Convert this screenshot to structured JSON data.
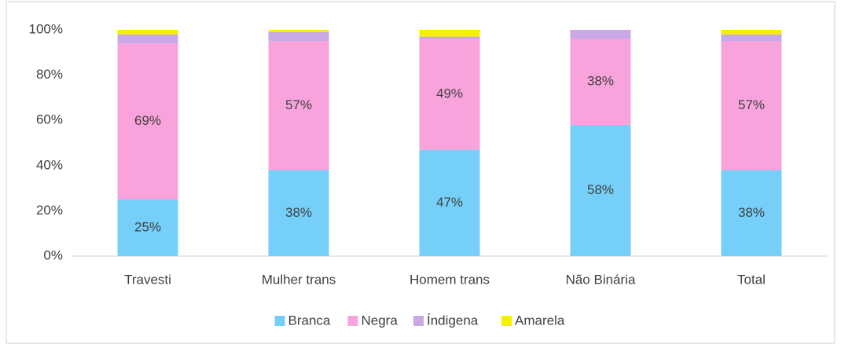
{
  "chart_data": {
    "type": "stacked_bar",
    "categories": [
      "Travesti",
      "Mulher trans",
      "Homem trans",
      "Não Binária",
      "Total"
    ],
    "series": [
      {
        "name": "Branca",
        "color": "#75cff9",
        "values": [
          25,
          38,
          47,
          58,
          38
        ],
        "value_labels": [
          "25%",
          "38%",
          "47%",
          "58%",
          "38%"
        ]
      },
      {
        "name": "Negra",
        "color": "#f9a3dc",
        "values": [
          69,
          57,
          49,
          38,
          57
        ],
        "value_labels": [
          "69%",
          "57%",
          "49%",
          "38%",
          "57%"
        ]
      },
      {
        "name": "Índigena",
        "color": "#c9a8e8",
        "values": [
          4,
          4,
          1,
          4,
          3
        ]
      },
      {
        "name": "Amarela",
        "color": "#f5f000",
        "values": [
          2,
          1,
          3,
          0,
          2
        ]
      }
    ],
    "ylim": [
      0,
      100
    ],
    "yticks": [
      {
        "value": 0,
        "label": "0%"
      },
      {
        "value": 20,
        "label": "20%"
      },
      {
        "value": 40,
        "label": "40%"
      },
      {
        "value": 60,
        "label": "60%"
      },
      {
        "value": 80,
        "label": "80%"
      },
      {
        "value": 100,
        "label": "100%"
      }
    ],
    "grid": false,
    "legend": "bottom"
  }
}
